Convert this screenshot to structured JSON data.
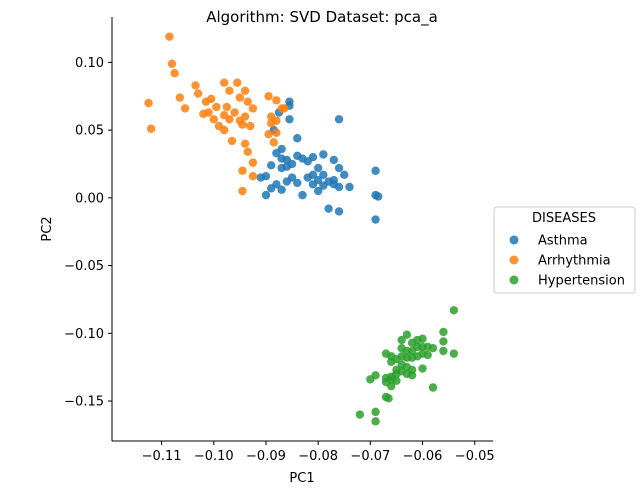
{
  "chart_data": {
    "type": "scatter",
    "title": "Algorithm: SVD  Dataset: pca_a",
    "xlabel": "PC1",
    "ylabel": "PC2",
    "xlim": [
      -0.1195,
      -0.0465
    ],
    "ylim": [
      -0.1795,
      0.1335
    ],
    "xticks": [
      -0.11,
      -0.1,
      -0.09,
      -0.08,
      -0.07,
      -0.06,
      -0.05
    ],
    "xtick_labels": [
      "−0.11",
      "−0.10",
      "−0.09",
      "−0.08",
      "−0.07",
      "−0.06",
      "−0.05"
    ],
    "yticks": [
      -0.15,
      -0.1,
      -0.05,
      0.0,
      0.05,
      0.1
    ],
    "ytick_labels": [
      "−0.15",
      "−0.10",
      "−0.05",
      "0.00",
      "0.05",
      "0.10"
    ],
    "grid": false,
    "legend": {
      "title": "DISEASES",
      "placement": "right, outside"
    },
    "series": [
      {
        "name": "Asthma",
        "color": "#1f77b4",
        "points": [
          [
            -0.0855,
            0.071
          ],
          [
            -0.0855,
            0.068
          ],
          [
            -0.0875,
            0.063
          ],
          [
            -0.0855,
            0.058
          ],
          [
            -0.0885,
            0.05
          ],
          [
            -0.084,
            0.044
          ],
          [
            -0.076,
            0.058
          ],
          [
            -0.087,
            0.036
          ],
          [
            -0.088,
            0.033
          ],
          [
            -0.087,
            0.029
          ],
          [
            -0.086,
            0.028
          ],
          [
            -0.085,
            0.025
          ],
          [
            -0.087,
            0.022
          ],
          [
            -0.084,
            0.031
          ],
          [
            -0.083,
            0.029
          ],
          [
            -0.081,
            0.03
          ],
          [
            -0.079,
            0.032
          ],
          [
            -0.082,
            0.027
          ],
          [
            -0.077,
            0.028
          ],
          [
            -0.076,
            0.022
          ],
          [
            -0.08,
            0.022
          ],
          [
            -0.079,
            0.017
          ],
          [
            -0.077,
            0.013
          ],
          [
            -0.075,
            0.017
          ],
          [
            -0.077,
            0.01
          ],
          [
            -0.076,
            0.008
          ],
          [
            -0.074,
            0.008
          ],
          [
            -0.08,
            0.013
          ],
          [
            -0.081,
            0.01
          ],
          [
            -0.079,
            0.009
          ],
          [
            -0.082,
            0.015
          ],
          [
            -0.084,
            0.011
          ],
          [
            -0.086,
            0.012
          ],
          [
            -0.087,
            0.006
          ],
          [
            -0.088,
            0.01
          ],
          [
            -0.089,
            0.007
          ],
          [
            -0.09,
            0.016
          ],
          [
            -0.091,
            0.015
          ],
          [
            -0.09,
            0.002
          ],
          [
            -0.083,
            0.002
          ],
          [
            -0.08,
            0.005
          ],
          [
            -0.078,
            -0.008
          ],
          [
            -0.076,
            -0.01
          ],
          [
            -0.069,
            0.02
          ],
          [
            -0.069,
            0.002
          ],
          [
            -0.0685,
            0.001
          ],
          [
            -0.069,
            -0.016
          ],
          [
            -0.089,
            0.024
          ],
          [
            -0.086,
            0.023
          ],
          [
            -0.081,
            0.017
          ],
          [
            -0.085,
            0.015
          ],
          [
            -0.078,
            0.012
          ]
        ]
      },
      {
        "name": "Arrhythmia",
        "color": "#ff7f0e",
        "points": [
          [
            -0.1085,
            0.119
          ],
          [
            -0.108,
            0.099
          ],
          [
            -0.1075,
            0.092
          ],
          [
            -0.1125,
            0.07
          ],
          [
            -0.112,
            0.051
          ],
          [
            -0.1065,
            0.074
          ],
          [
            -0.1055,
            0.066
          ],
          [
            -0.1035,
            0.083
          ],
          [
            -0.103,
            0.077
          ],
          [
            -0.1015,
            0.071
          ],
          [
            -0.102,
            0.062
          ],
          [
            -0.1005,
            0.073
          ],
          [
            -0.101,
            0.063
          ],
          [
            -0.0995,
            0.067
          ],
          [
            -0.0975,
            0.067
          ],
          [
            -0.098,
            0.061
          ],
          [
            -0.097,
            0.058
          ],
          [
            -0.096,
            0.063
          ],
          [
            -0.098,
            0.085
          ],
          [
            -0.0955,
            0.085
          ],
          [
            -0.097,
            0.079
          ],
          [
            -0.095,
            0.074
          ],
          [
            -0.094,
            0.079
          ],
          [
            -0.0935,
            0.071
          ],
          [
            -0.0925,
            0.066
          ],
          [
            -0.095,
            0.057
          ],
          [
            -0.094,
            0.06
          ],
          [
            -0.0945,
            0.054
          ],
          [
            -0.093,
            0.053
          ],
          [
            -0.099,
            0.053
          ],
          [
            -0.1,
            0.058
          ],
          [
            -0.098,
            0.05
          ],
          [
            -0.0965,
            0.042
          ],
          [
            -0.094,
            0.04
          ],
          [
            -0.0935,
            0.034
          ],
          [
            -0.0945,
            0.02
          ],
          [
            -0.0925,
            0.026
          ],
          [
            -0.0925,
            0.016
          ],
          [
            -0.0945,
            0.005
          ],
          [
            -0.0895,
            0.075
          ],
          [
            -0.088,
            0.072
          ],
          [
            -0.087,
            0.066
          ],
          [
            -0.0865,
            0.066
          ],
          [
            -0.088,
            0.057
          ],
          [
            -0.089,
            0.06
          ],
          [
            -0.0895,
            0.047
          ],
          [
            -0.0885,
            0.041
          ],
          [
            -0.088,
            0.048
          ],
          [
            -0.089,
            0.055
          ]
        ]
      },
      {
        "name": "Hypertension",
        "color": "#2ca02c",
        "points": [
          [
            -0.054,
            -0.083
          ],
          [
            -0.056,
            -0.099
          ],
          [
            -0.056,
            -0.106
          ],
          [
            -0.058,
            -0.111
          ],
          [
            -0.056,
            -0.113
          ],
          [
            -0.054,
            -0.115
          ],
          [
            -0.06,
            -0.104
          ],
          [
            -0.061,
            -0.105
          ],
          [
            -0.062,
            -0.107
          ],
          [
            -0.063,
            -0.101
          ],
          [
            -0.064,
            -0.105
          ],
          [
            -0.06,
            -0.11
          ],
          [
            -0.059,
            -0.11
          ],
          [
            -0.061,
            -0.11
          ],
          [
            -0.062,
            -0.113
          ],
          [
            -0.06,
            -0.115
          ],
          [
            -0.059,
            -0.116
          ],
          [
            -0.061,
            -0.117
          ],
          [
            -0.062,
            -0.118
          ],
          [
            -0.063,
            -0.118
          ],
          [
            -0.064,
            -0.111
          ],
          [
            -0.064,
            -0.117
          ],
          [
            -0.065,
            -0.119
          ],
          [
            -0.066,
            -0.117
          ],
          [
            -0.067,
            -0.115
          ],
          [
            -0.066,
            -0.121
          ],
          [
            -0.064,
            -0.123
          ],
          [
            -0.063,
            -0.125
          ],
          [
            -0.062,
            -0.127
          ],
          [
            -0.06,
            -0.126
          ],
          [
            -0.064,
            -0.128
          ],
          [
            -0.063,
            -0.13
          ],
          [
            -0.062,
            -0.131
          ],
          [
            -0.065,
            -0.127
          ],
          [
            -0.065,
            -0.13
          ],
          [
            -0.066,
            -0.132
          ],
          [
            -0.067,
            -0.133
          ],
          [
            -0.066,
            -0.134
          ],
          [
            -0.065,
            -0.135
          ],
          [
            -0.067,
            -0.136
          ],
          [
            -0.066,
            -0.139
          ],
          [
            -0.069,
            -0.131
          ],
          [
            -0.07,
            -0.134
          ],
          [
            -0.067,
            -0.147
          ],
          [
            -0.0665,
            -0.148
          ],
          [
            -0.058,
            -0.14
          ],
          [
            -0.069,
            -0.158
          ],
          [
            -0.072,
            -0.16
          ],
          [
            -0.069,
            -0.165
          ],
          [
            -0.063,
            -0.113
          ]
        ]
      }
    ]
  }
}
